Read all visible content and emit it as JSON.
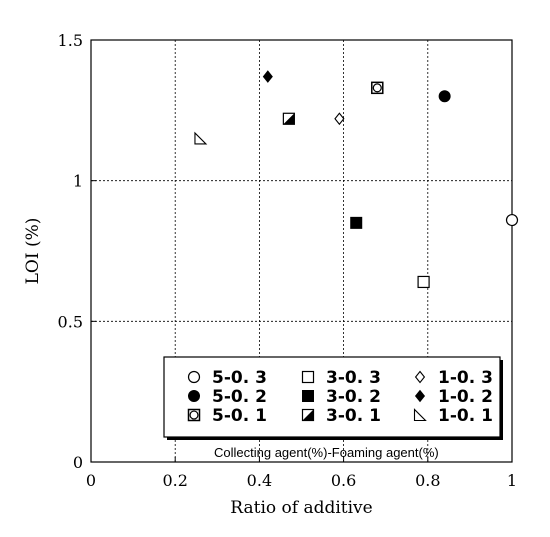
{
  "chart_data": {
    "type": "scatter",
    "xlabel": "Ratio of additive",
    "ylabel": "LOI (%)",
    "xlim": [
      0,
      1
    ],
    "ylim": [
      0,
      1.5
    ],
    "grid": true,
    "x_ticks": [
      "0",
      "0.2",
      "0.4",
      "0.6",
      "0.8",
      "1"
    ],
    "y_ticks": [
      "0",
      "0.5",
      "1",
      "1.5"
    ],
    "legend_title": "Collecting agent(%)-Foaming agent(%)",
    "legend_position": "bottom-right",
    "series": [
      {
        "name": "5-0. 3",
        "marker": "circle-open",
        "points": [
          [
            1.0,
            0.86
          ]
        ]
      },
      {
        "name": "5-0. 2",
        "marker": "circle-filled",
        "points": [
          [
            0.84,
            1.3
          ]
        ]
      },
      {
        "name": "5-0. 1",
        "marker": "square-circle",
        "points": [
          [
            0.68,
            1.33
          ]
        ]
      },
      {
        "name": "3-0. 3",
        "marker": "square-open",
        "points": [
          [
            0.79,
            0.64
          ]
        ]
      },
      {
        "name": "3-0. 2",
        "marker": "square-filled",
        "points": [
          [
            0.63,
            0.85
          ]
        ]
      },
      {
        "name": "3-0. 1",
        "marker": "square-half",
        "points": [
          [
            0.47,
            1.22
          ]
        ]
      },
      {
        "name": "1-0. 3",
        "marker": "diamond-open",
        "points": [
          [
            0.59,
            1.22
          ]
        ]
      },
      {
        "name": "1-0. 2",
        "marker": "diamond-filled",
        "points": [
          [
            0.42,
            1.37
          ]
        ]
      },
      {
        "name": "1-0. 1",
        "marker": "triangle-open",
        "points": [
          [
            0.26,
            1.15
          ]
        ]
      }
    ]
  }
}
